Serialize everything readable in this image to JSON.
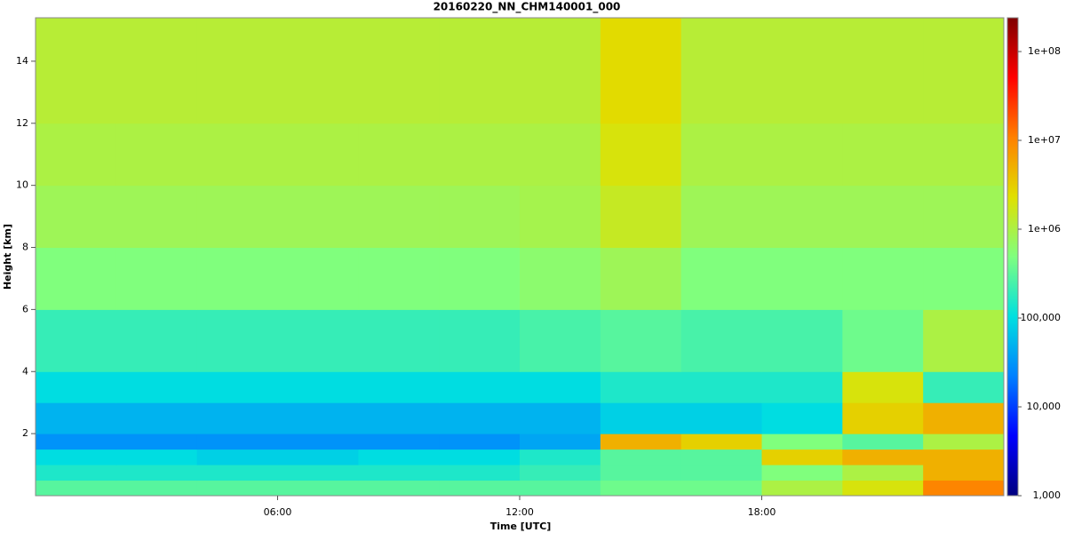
{
  "chart_data": {
    "type": "heatmap",
    "title": "20160220_NN_CHM140001_000",
    "x_label": "Time [UTC]",
    "y_label": "Height [km]",
    "xlim": [
      0,
      24
    ],
    "xticks": [
      {
        "value": 6,
        "label": "06:00"
      },
      {
        "value": 12,
        "label": "12:00"
      },
      {
        "value": 18,
        "label": "18:00"
      }
    ],
    "ylim": [
      0,
      15.4
    ],
    "yticks": [
      2,
      4,
      6,
      8,
      10,
      12,
      14
    ],
    "x_edges": [
      0,
      2,
      4,
      6,
      8,
      10,
      12,
      14,
      16,
      18,
      20,
      22,
      24
    ],
    "y_edges": [
      0,
      0.5,
      1,
      1.5,
      2,
      3,
      4,
      6,
      8,
      10,
      12,
      15.4
    ],
    "z": [
      [
        300000,
        300000,
        300000,
        300000,
        300000,
        300000,
        300000,
        400000,
        400000,
        1000000,
        2000000,
        10000000
      ],
      [
        150000,
        150000,
        150000,
        150000,
        150000,
        150000,
        200000,
        300000,
        300000,
        500000,
        1000000,
        5000000
      ],
      [
        100000,
        100000,
        80000,
        80000,
        100000,
        100000,
        150000,
        300000,
        300000,
        3000000,
        5000000,
        5000000
      ],
      [
        30000,
        30000,
        30000,
        30000,
        30000,
        30000,
        40000,
        5000000,
        3000000,
        500000,
        300000,
        1000000
      ],
      [
        50000,
        50000,
        50000,
        50000,
        50000,
        50000,
        50000,
        80000,
        80000,
        100000,
        3000000,
        5000000
      ],
      [
        100000,
        100000,
        100000,
        100000,
        100000,
        100000,
        100000,
        150000,
        150000,
        150000,
        2000000,
        200000
      ],
      [
        200000,
        200000,
        200000,
        200000,
        200000,
        200000,
        250000,
        300000,
        250000,
        250000,
        400000,
        1000000
      ],
      [
        500000,
        500000,
        500000,
        500000,
        500000,
        500000,
        600000,
        800000,
        500000,
        500000,
        500000,
        500000
      ],
      [
        800000,
        800000,
        800000,
        800000,
        800000,
        800000,
        900000,
        1500000,
        800000,
        800000,
        800000,
        800000
      ],
      [
        1000000,
        1000000,
        1000000,
        1000000,
        1000000,
        1000000,
        1000000,
        2000000,
        1000000,
        1000000,
        1000000,
        1000000
      ],
      [
        1200000,
        1200000,
        1200000,
        1200000,
        1200000,
        1200000,
        1200000,
        2500000,
        1200000,
        1200000,
        1200000,
        1200000
      ]
    ],
    "log_color_scale": true,
    "clim": [
      1000,
      240000000
    ],
    "cticks": [
      {
        "value": 1000,
        "label": "1,000"
      },
      {
        "value": 10000,
        "label": "10,000"
      },
      {
        "value": 100000,
        "label": "100,000"
      },
      {
        "value": 1000000,
        "label": "1e+06"
      },
      {
        "value": 10000000,
        "label": "1e+07"
      },
      {
        "value": 100000000,
        "label": "1e+08"
      }
    ],
    "colormap": [
      "#00007f",
      "#0000ff",
      "#0080ff",
      "#00e0e0",
      "#7fff7f",
      "#e0e000",
      "#ff8000",
      "#ff0000",
      "#7f0000"
    ]
  }
}
